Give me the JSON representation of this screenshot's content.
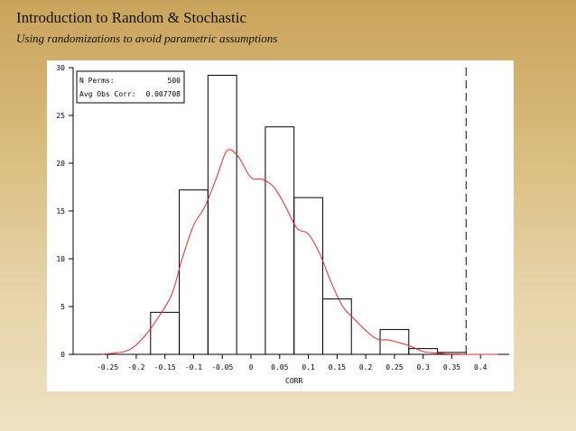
{
  "slide": {
    "title": "Introduction to Random & Stochastic",
    "subtitle": "Using randomizations to avoid parametric assumptions"
  },
  "chart_data": {
    "type": "bar",
    "xlabel": "CORR",
    "ylabel": "",
    "xlim": [
      -0.31,
      0.45
    ],
    "ylim": [
      0,
      30
    ],
    "x_ticks": [
      "-0.25",
      "-0.2",
      "-0.15",
      "-0.1",
      "-0.05",
      "0",
      "0.05",
      "0.1",
      "0.15",
      "0.2",
      "0.25",
      "0.3",
      "0.35",
      "0.4"
    ],
    "x_tick_values": [
      -0.25,
      -0.2,
      -0.15,
      -0.1,
      -0.05,
      0,
      0.05,
      0.1,
      0.15,
      0.2,
      0.25,
      0.3,
      0.35,
      0.4
    ],
    "y_ticks": [
      "0",
      "5",
      "10",
      "15",
      "20",
      "25",
      "30"
    ],
    "y_tick_values": [
      0,
      5,
      10,
      15,
      20,
      25,
      30
    ],
    "bins": [
      {
        "x0": -0.175,
        "x1": -0.125,
        "value": 4.4
      },
      {
        "x0": -0.125,
        "x1": -0.075,
        "value": 17.2
      },
      {
        "x0": -0.075,
        "x1": -0.025,
        "value": 29.2
      },
      {
        "x0": -0.025,
        "x1": 0.025,
        "value": 0
      },
      {
        "x0": 0.025,
        "x1": 0.075,
        "value": 23.8
      },
      {
        "x0": 0.075,
        "x1": 0.125,
        "value": 16.4
      },
      {
        "x0": 0.125,
        "x1": 0.175,
        "value": 5.8
      },
      {
        "x0": 0.175,
        "x1": 0.225,
        "value": 0
      },
      {
        "x0": 0.225,
        "x1": 0.275,
        "value": 2.6
      },
      {
        "x0": 0.275,
        "x1": 0.325,
        "value": 0.6
      },
      {
        "x0": 0.325,
        "x1": 0.375,
        "value": 0.2
      }
    ],
    "density_curve": {
      "color": "#e8292b",
      "x": [
        -0.26,
        -0.22,
        -0.2,
        -0.18,
        -0.16,
        -0.14,
        -0.13,
        -0.12,
        -0.1,
        -0.08,
        -0.06,
        -0.045,
        -0.035,
        -0.02,
        0,
        0.02,
        0.04,
        0.06,
        0.08,
        0.1,
        0.12,
        0.14,
        0.16,
        0.18,
        0.2,
        0.22,
        0.24,
        0.26,
        0.28,
        0.3,
        0.32,
        0.34,
        0.36,
        0.38,
        0.4,
        0.43
      ],
      "y": [
        0,
        0.3,
        1.0,
        2.3,
        4.0,
        6.0,
        7.8,
        10.0,
        13.5,
        15.5,
        18.5,
        21.0,
        21.4,
        20.5,
        18.5,
        18.3,
        17.5,
        15.5,
        13.2,
        12.6,
        10.5,
        7.5,
        5.0,
        3.7,
        2.5,
        1.6,
        1.5,
        1.2,
        0.8,
        0.3,
        0.15,
        0.05,
        0.02,
        0,
        0,
        0
      ]
    },
    "reference_line": {
      "x": 0.375,
      "style": "dashed"
    },
    "legend_box": {
      "placement": "top-left",
      "rows": [
        {
          "label": "N Perms:",
          "value": "500"
        },
        {
          "label": "Avg Obs Corr:",
          "value": "0.007708"
        }
      ]
    }
  }
}
